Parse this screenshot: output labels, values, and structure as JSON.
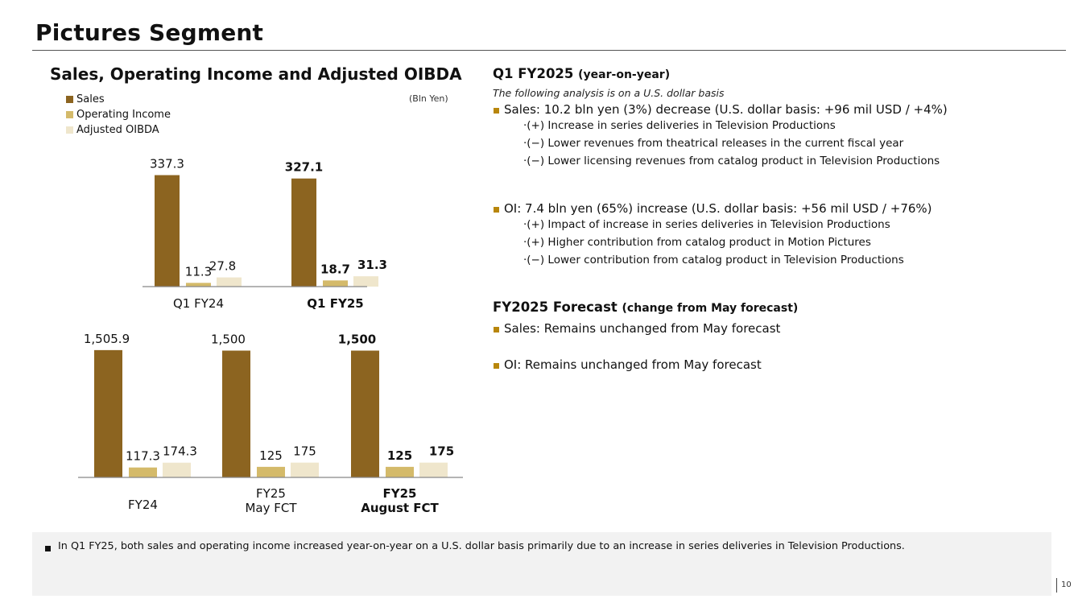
{
  "page": {
    "title": "Pictures Segment",
    "page_number": "10"
  },
  "colors": {
    "sales": "#8c6420",
    "operating_income": "#d4ba6a",
    "adjusted_oibda": "#efe6cc",
    "bullet_accent": "#b8860b",
    "axis": "#888888"
  },
  "chart_heading": "Sales, Operating Income and Adjusted OIBDA",
  "chart_data": [
    {
      "type": "bar",
      "title": "Sales, Operating Income and Adjusted OIBDA",
      "unit": "(Bln Yen)",
      "legend": [
        "Sales",
        "Operating Income",
        "Adjusted OIBDA"
      ],
      "legend_position": "top-left",
      "categories": [
        "Q1 FY24",
        "Q1 FY25"
      ],
      "category_bold": [
        false,
        true
      ],
      "series": [
        {
          "name": "Sales",
          "values": [
            337.3,
            327.1
          ],
          "labels": [
            "337.3",
            "327.1"
          ]
        },
        {
          "name": "Operating Income",
          "values": [
            11.3,
            18.7
          ],
          "labels": [
            "11.3",
            "18.7"
          ]
        },
        {
          "name": "Adjusted OIBDA",
          "values": [
            27.8,
            31.3
          ],
          "labels": [
            "27.8",
            "31.3"
          ]
        }
      ],
      "ylim": [
        0,
        380
      ]
    },
    {
      "type": "bar",
      "title": "",
      "categories": [
        [
          "FY24"
        ],
        [
          "FY25",
          "May FCT"
        ],
        [
          "FY25",
          "August FCT"
        ]
      ],
      "category_bold": [
        false,
        false,
        true
      ],
      "series": [
        {
          "name": "Sales",
          "values": [
            1505.9,
            1500,
            1500
          ],
          "labels": [
            "1,505.9",
            "1,500",
            "1,500"
          ]
        },
        {
          "name": "Operating Income",
          "values": [
            117.3,
            125,
            125
          ],
          "labels": [
            "117.3",
            "125",
            "125"
          ]
        },
        {
          "name": "Adjusted OIBDA",
          "values": [
            174.3,
            175,
            175
          ],
          "labels": [
            "174.3",
            "175",
            "175"
          ]
        }
      ],
      "ylim": [
        0,
        1600
      ]
    }
  ],
  "q1": {
    "title": "Q1 FY2025",
    "subtitle": "(year-on-year)",
    "note": "The following analysis is on a U.S. dollar basis",
    "sales_bullet": "Sales: 10.2 bln yen (3%) decrease (U.S. dollar basis: +96 mil USD / +4%)",
    "sales_items": [
      "·(+) Increase in series deliveries in Television Productions",
      "·(−) Lower revenues from theatrical releases in the current fiscal year",
      "·(−) Lower licensing revenues from catalog product in Television Productions"
    ],
    "oi_bullet": "OI: 7.4 bln yen (65%) increase (U.S. dollar basis: +56 mil USD / +76%)",
    "oi_items": [
      "·(+) Impact of increase in series deliveries in Television Productions",
      "·(+) Higher contribution from catalog product in Motion Pictures",
      "·(−) Lower contribution from catalog product in Television Productions"
    ]
  },
  "forecast": {
    "title": "FY2025 Forecast",
    "subtitle": "(change from May forecast)",
    "sales_bullet": "Sales: Remains unchanged from May forecast",
    "oi_bullet": "OI: Remains unchanged from May forecast"
  },
  "footer": {
    "text": "In Q1 FY25, both sales and operating income increased year-on-year on a U.S. dollar basis primarily due to an increase in series deliveries in Television Productions."
  }
}
